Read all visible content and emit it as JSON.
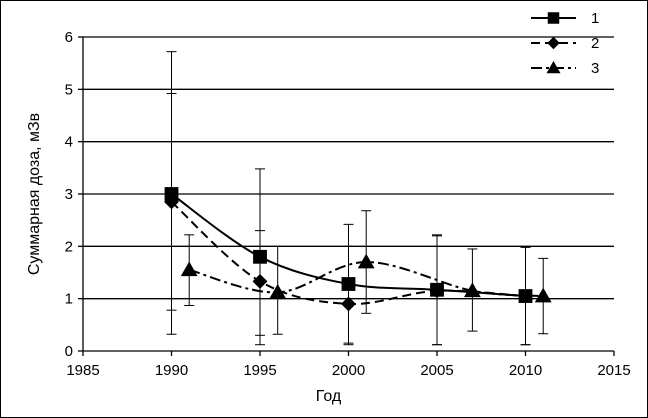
{
  "chart_data": {
    "type": "line",
    "xlabel": "Год",
    "ylabel": "Суммарная доза, мЗв",
    "xlim": [
      1985,
      2015
    ],
    "ylim": [
      0,
      6
    ],
    "x_ticks": [
      1985,
      1990,
      1995,
      2000,
      2005,
      2010,
      2015
    ],
    "y_ticks": [
      0,
      1,
      2,
      3,
      4,
      5,
      6
    ],
    "grid": "horizontal",
    "legend_position": "top-right",
    "series": [
      {
        "name": "1",
        "marker": "square",
        "line_style": "solid",
        "x": [
          1990,
          1995,
          2000,
          2005,
          2010
        ],
        "y": [
          3.0,
          1.8,
          1.28,
          1.17,
          1.05
        ],
        "err_low": [
          0.32,
          0.3,
          0.15,
          0.12,
          0.12
        ],
        "err_high": [
          5.72,
          3.48,
          2.42,
          2.22,
          2.0
        ]
      },
      {
        "name": "2",
        "marker": "diamond",
        "line_style": "dashed",
        "x": [
          1990,
          1995,
          2000,
          2005,
          2010
        ],
        "y": [
          2.85,
          1.33,
          0.9,
          1.15,
          1.05
        ],
        "err_low": [
          0.78,
          0.12,
          0.12,
          0.12,
          0.12
        ],
        "err_high": [
          4.92,
          2.3,
          2.0,
          2.2,
          1.98
        ]
      },
      {
        "name": "3",
        "marker": "triangle",
        "line_style": "dash-dot",
        "x": [
          1991,
          1996,
          2001,
          2007,
          2011
        ],
        "y": [
          1.55,
          1.12,
          1.7,
          1.15,
          1.05
        ],
        "err_low": [
          0.87,
          0.32,
          0.72,
          0.38,
          0.33
        ],
        "err_high": [
          2.22,
          2.0,
          2.68,
          1.95,
          1.77
        ]
      }
    ]
  }
}
